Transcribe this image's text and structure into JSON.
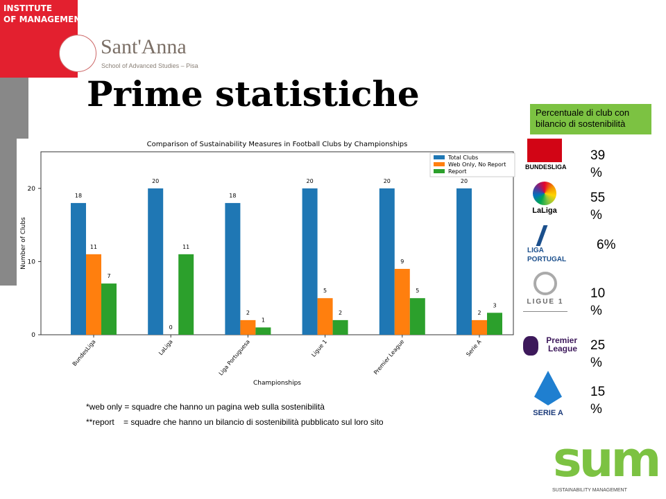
{
  "header": {
    "institute_line1": "INSTITUTE",
    "institute_line2": "OF MANAGEMENT",
    "school_name": "Sant'Anna",
    "school_subtitle": "School of Advanced Studies – Pisa"
  },
  "slide_title": "Prime statistiche",
  "chart_data": {
    "type": "bar",
    "title": "Comparison of Sustainability Measures in Football Clubs by Championships",
    "xlabel": "Championships",
    "ylabel": "Number of Clubs",
    "ylim": [
      0,
      25
    ],
    "yticks": [
      0,
      10,
      20
    ],
    "categories": [
      "BundesLiga",
      "LaLiga",
      "Liga Portuguesa",
      "Ligue 1",
      "Premier League",
      "Serie A"
    ],
    "series": [
      {
        "name": "Total Clubs",
        "color": "#1f77b4",
        "values": [
          18,
          20,
          18,
          20,
          20,
          20
        ]
      },
      {
        "name": "Web Only, No Report",
        "color": "#ff7f0e",
        "values": [
          11,
          0,
          2,
          5,
          9,
          2
        ]
      },
      {
        "name": "Report",
        "color": "#2ca02c",
        "values": [
          7,
          11,
          1,
          2,
          5,
          3
        ]
      }
    ],
    "data_labels": true,
    "grid": false,
    "legend": "top-right"
  },
  "notes": [
    "*web only = squadre che hanno un pagina web sulla sostenibilità",
    "**report    = squadre che hanno un bilancio di sostenibilità pubblicato sul loro sito"
  ],
  "sidebar": {
    "heading": "Percentuale di club con bilancio di sostenibilità",
    "heading_color": "#7cc242",
    "leagues": [
      {
        "logo": "BUNDESLIGA",
        "pct": "39 %"
      },
      {
        "logo": "LaLiga",
        "pct": "55 %"
      },
      {
        "logo": "LIGA PORTUGAL",
        "pct": "6%"
      },
      {
        "logo": "LIGUE 1",
        "pct": "10 %"
      },
      {
        "logo": "Premier League",
        "pct": "25 %"
      },
      {
        "logo": "SERIE A",
        "pct": "15 %"
      }
    ]
  },
  "footer": {
    "logo": "sum",
    "tagline": "SUSTAINABILITY MANAGEMENT"
  }
}
